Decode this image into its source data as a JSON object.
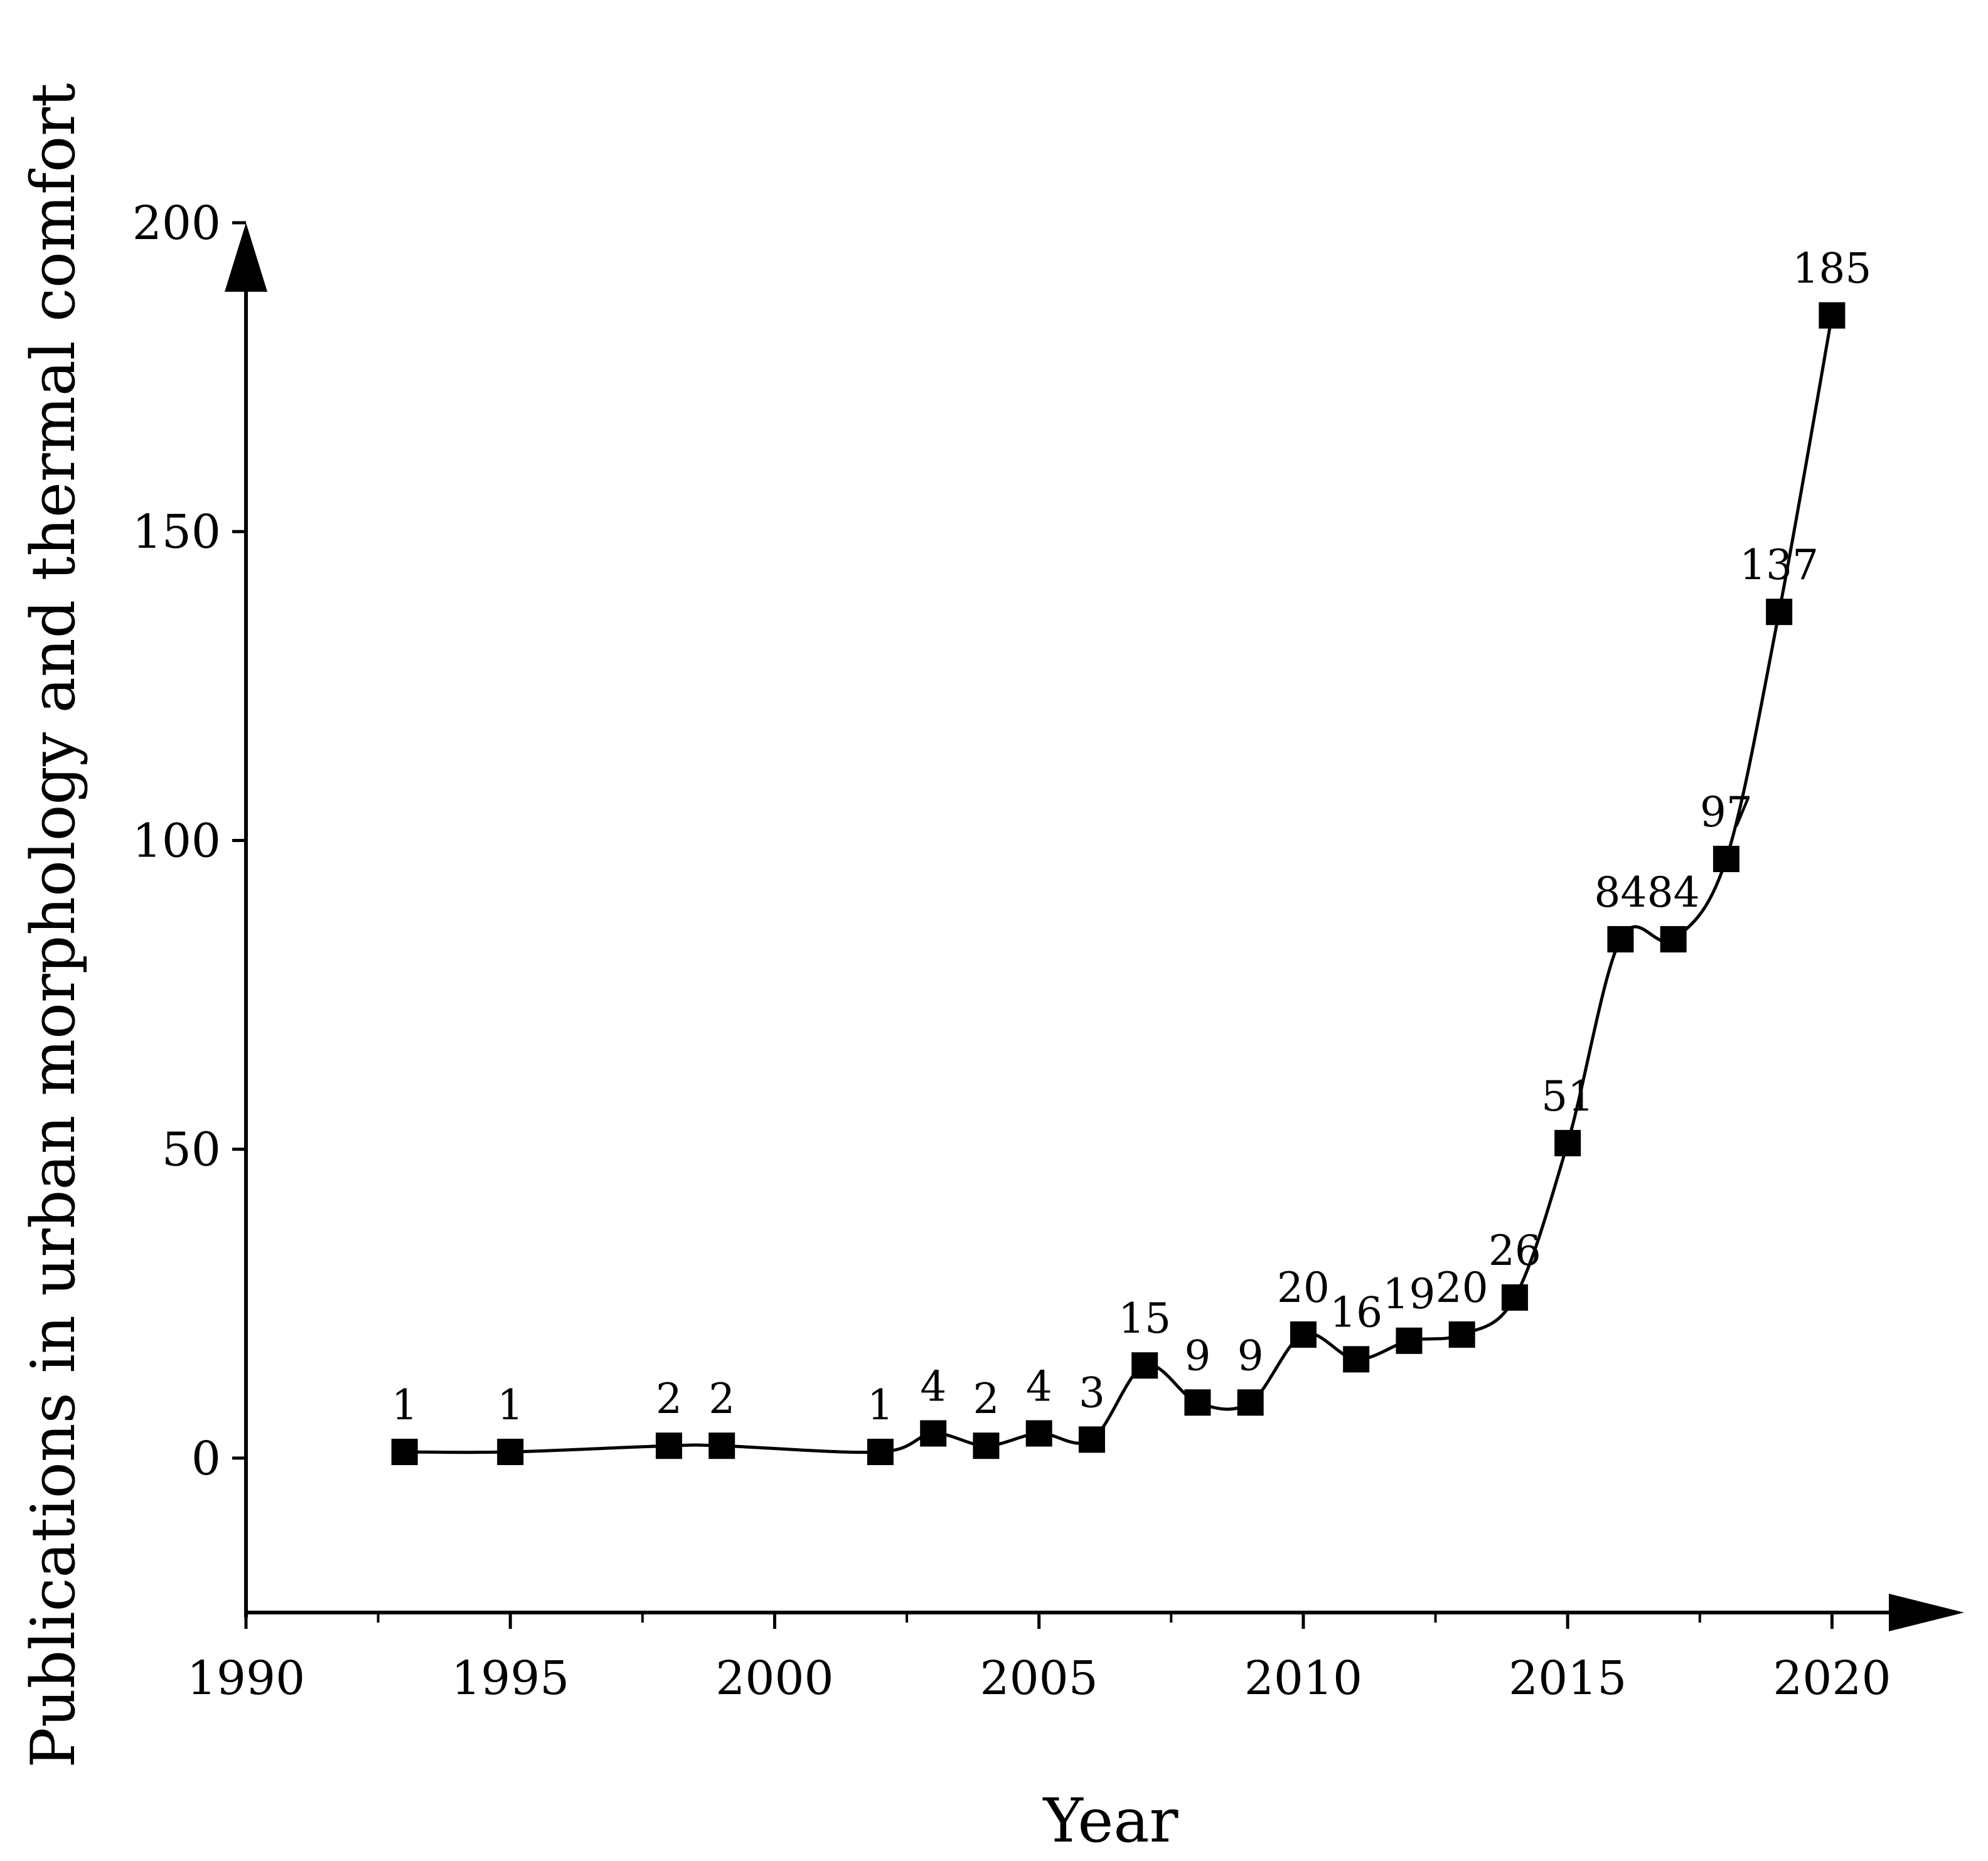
{
  "chart_data": {
    "type": "line",
    "title": "",
    "xlabel": "Year",
    "ylabel": "Publications in urban morphology and thermal comfort",
    "xlim": [
      1990,
      2022.5
    ],
    "ylim": [
      -25,
      200
    ],
    "xticks": [
      1990,
      1995,
      2000,
      2005,
      2010,
      2015,
      2020
    ],
    "xtick_labels": [
      "1990",
      "1995",
      "2000",
      "2005",
      "2010",
      "2015",
      "2020"
    ],
    "x_minor_ticks": [
      1992.5,
      1997.5,
      2002.5,
      2007.5,
      2012.5,
      2017.5
    ],
    "yticks": [
      0,
      50,
      100,
      150,
      200
    ],
    "ytick_labels": [
      "0",
      "50",
      "100",
      "150",
      "200"
    ],
    "grid": false,
    "marker": "square",
    "line_style": "smooth",
    "series": [
      {
        "x": [
          1993,
          1995,
          1998,
          1999,
          2002,
          2003,
          2004,
          2005,
          2006,
          2007,
          2008,
          2009,
          2010,
          2011,
          2012,
          2013,
          2014,
          2015,
          2016,
          2017,
          2018,
          2019,
          2020
        ],
        "values": [
          1,
          1,
          2,
          2,
          1,
          4,
          2,
          4,
          3,
          15,
          9,
          9,
          20,
          16,
          19,
          20,
          26,
          51,
          84,
          84,
          97,
          137,
          185
        ],
        "labels": [
          "1",
          "1",
          "2",
          "2",
          "1",
          "4",
          "2",
          "4",
          "3",
          "15",
          "9",
          "9",
          "20",
          "16",
          "19",
          "20",
          "26",
          "51",
          "84",
          "84",
          "97",
          "137",
          "185"
        ]
      }
    ],
    "colors": {
      "line": "#000000",
      "marker": "#000000",
      "axis": "#000000",
      "background": "#ffffff"
    }
  }
}
